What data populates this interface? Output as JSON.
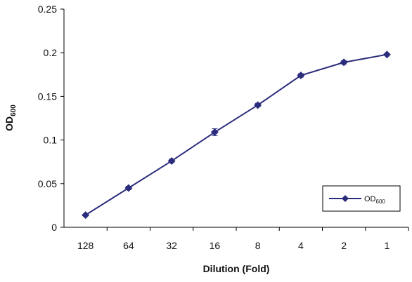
{
  "chart_data": {
    "type": "line",
    "title": "",
    "xlabel": "Dilution (Fold)",
    "ylabel": {
      "main": "OD",
      "sub": "600"
    },
    "categories": [
      "128",
      "64",
      "32",
      "16",
      "8",
      "4",
      "2",
      "1"
    ],
    "series": [
      {
        "name": {
          "main": "OD",
          "sub": "600"
        },
        "values": [
          0.014,
          0.045,
          0.076,
          0.109,
          0.14,
          0.174,
          0.189,
          0.198
        ],
        "errors": [
          0.001,
          0.002,
          0.002,
          0.004,
          0.002,
          0.002,
          0.002,
          0.001
        ],
        "color": "#2B2D7C",
        "marker": "diamond"
      }
    ],
    "ylim": [
      0,
      0.25
    ],
    "yticks": [
      "0",
      "0.05",
      "0.1",
      "0.15",
      "0.2",
      "0.25"
    ],
    "grid": false,
    "legend": "bottom-right"
  }
}
